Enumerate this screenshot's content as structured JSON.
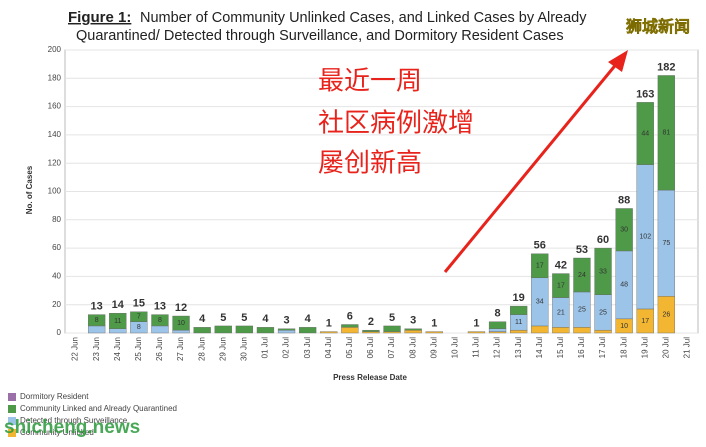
{
  "chart_data": {
    "type": "stacked_bar",
    "title_prefix": "Figure 1:",
    "title_lines": [
      "Number of Community Unlinked Cases, and Linked Cases by Already",
      "Quarantined/ Detected through Surveillance, and Dormitory Resident Cases"
    ],
    "y_label": "No. of Cases",
    "x_label": "Press Release Date",
    "categories": [
      "22 Jun",
      "23 Jun",
      "24 Jun",
      "25 Jun",
      "26 Jun",
      "27 Jun",
      "28 Jun",
      "29 Jun",
      "30 Jun",
      "01 Jul",
      "02 Jul",
      "03 Jul",
      "04 Jul",
      "05 Jul",
      "06 Jul",
      "07 Jul",
      "08 Jul",
      "09 Jul",
      "10 Jul",
      "11 Jul",
      "12 Jul",
      "13 Jul",
      "14 Jul",
      "15 Jul",
      "16 Jul",
      "17 Jul",
      "18 Jul",
      "19 Jul",
      "20 Jul",
      "21 Jul"
    ],
    "series": [
      {
        "name": "Dormitory Resident",
        "color": "#9b6fa8",
        "values": [
          0,
          0,
          0,
          0,
          0,
          0,
          0,
          0,
          0,
          0,
          0,
          0,
          0,
          0,
          0,
          0,
          0,
          0,
          0,
          0,
          0,
          0,
          0,
          0,
          0,
          0,
          0,
          0,
          0,
          0
        ]
      },
      {
        "name": "Community Linked and Already Quarantined",
        "color": "#4e9a48",
        "values": [
          0,
          8,
          11,
          7,
          8,
          10,
          4,
          5,
          5,
          4,
          1,
          4,
          0,
          2,
          1,
          4,
          1,
          0,
          0,
          0,
          5,
          6,
          17,
          17,
          24,
          33,
          30,
          44,
          81,
          0
        ]
      },
      {
        "name": "Detected through Surveillance",
        "color": "#9cc4e8",
        "values": [
          0,
          5,
          3,
          8,
          5,
          2,
          0,
          0,
          0,
          0,
          2,
          0,
          0,
          0,
          0,
          0,
          0,
          0,
          0,
          0,
          2,
          11,
          34,
          21,
          25,
          25,
          48,
          102,
          75,
          0
        ]
      },
      {
        "name": "Community Unlinked",
        "color": "#f2b632",
        "values": [
          0,
          0,
          0,
          0,
          0,
          0,
          0,
          0,
          0,
          0,
          0,
          0,
          1,
          4,
          1,
          1,
          2,
          1,
          0,
          1,
          1,
          2,
          5,
          4,
          4,
          2,
          10,
          17,
          26,
          0
        ]
      }
    ],
    "totals": [
      null,
      13,
      14,
      15,
      13,
      12,
      4,
      5,
      5,
      4,
      3,
      4,
      1,
      6,
      2,
      5,
      3,
      1,
      null,
      1,
      8,
      19,
      56,
      42,
      53,
      60,
      88,
      163,
      182,
      null
    ],
    "ylim": [
      0,
      200
    ],
    "yticks": [
      0,
      20,
      40,
      60,
      80,
      100,
      120,
      140,
      160,
      180,
      200
    ],
    "grid": true,
    "annotations": [
      "最近一周",
      "社区病例激增",
      "屡创新高"
    ],
    "watermarks": [
      "狮城新闻",
      "shicheng.news"
    ]
  }
}
